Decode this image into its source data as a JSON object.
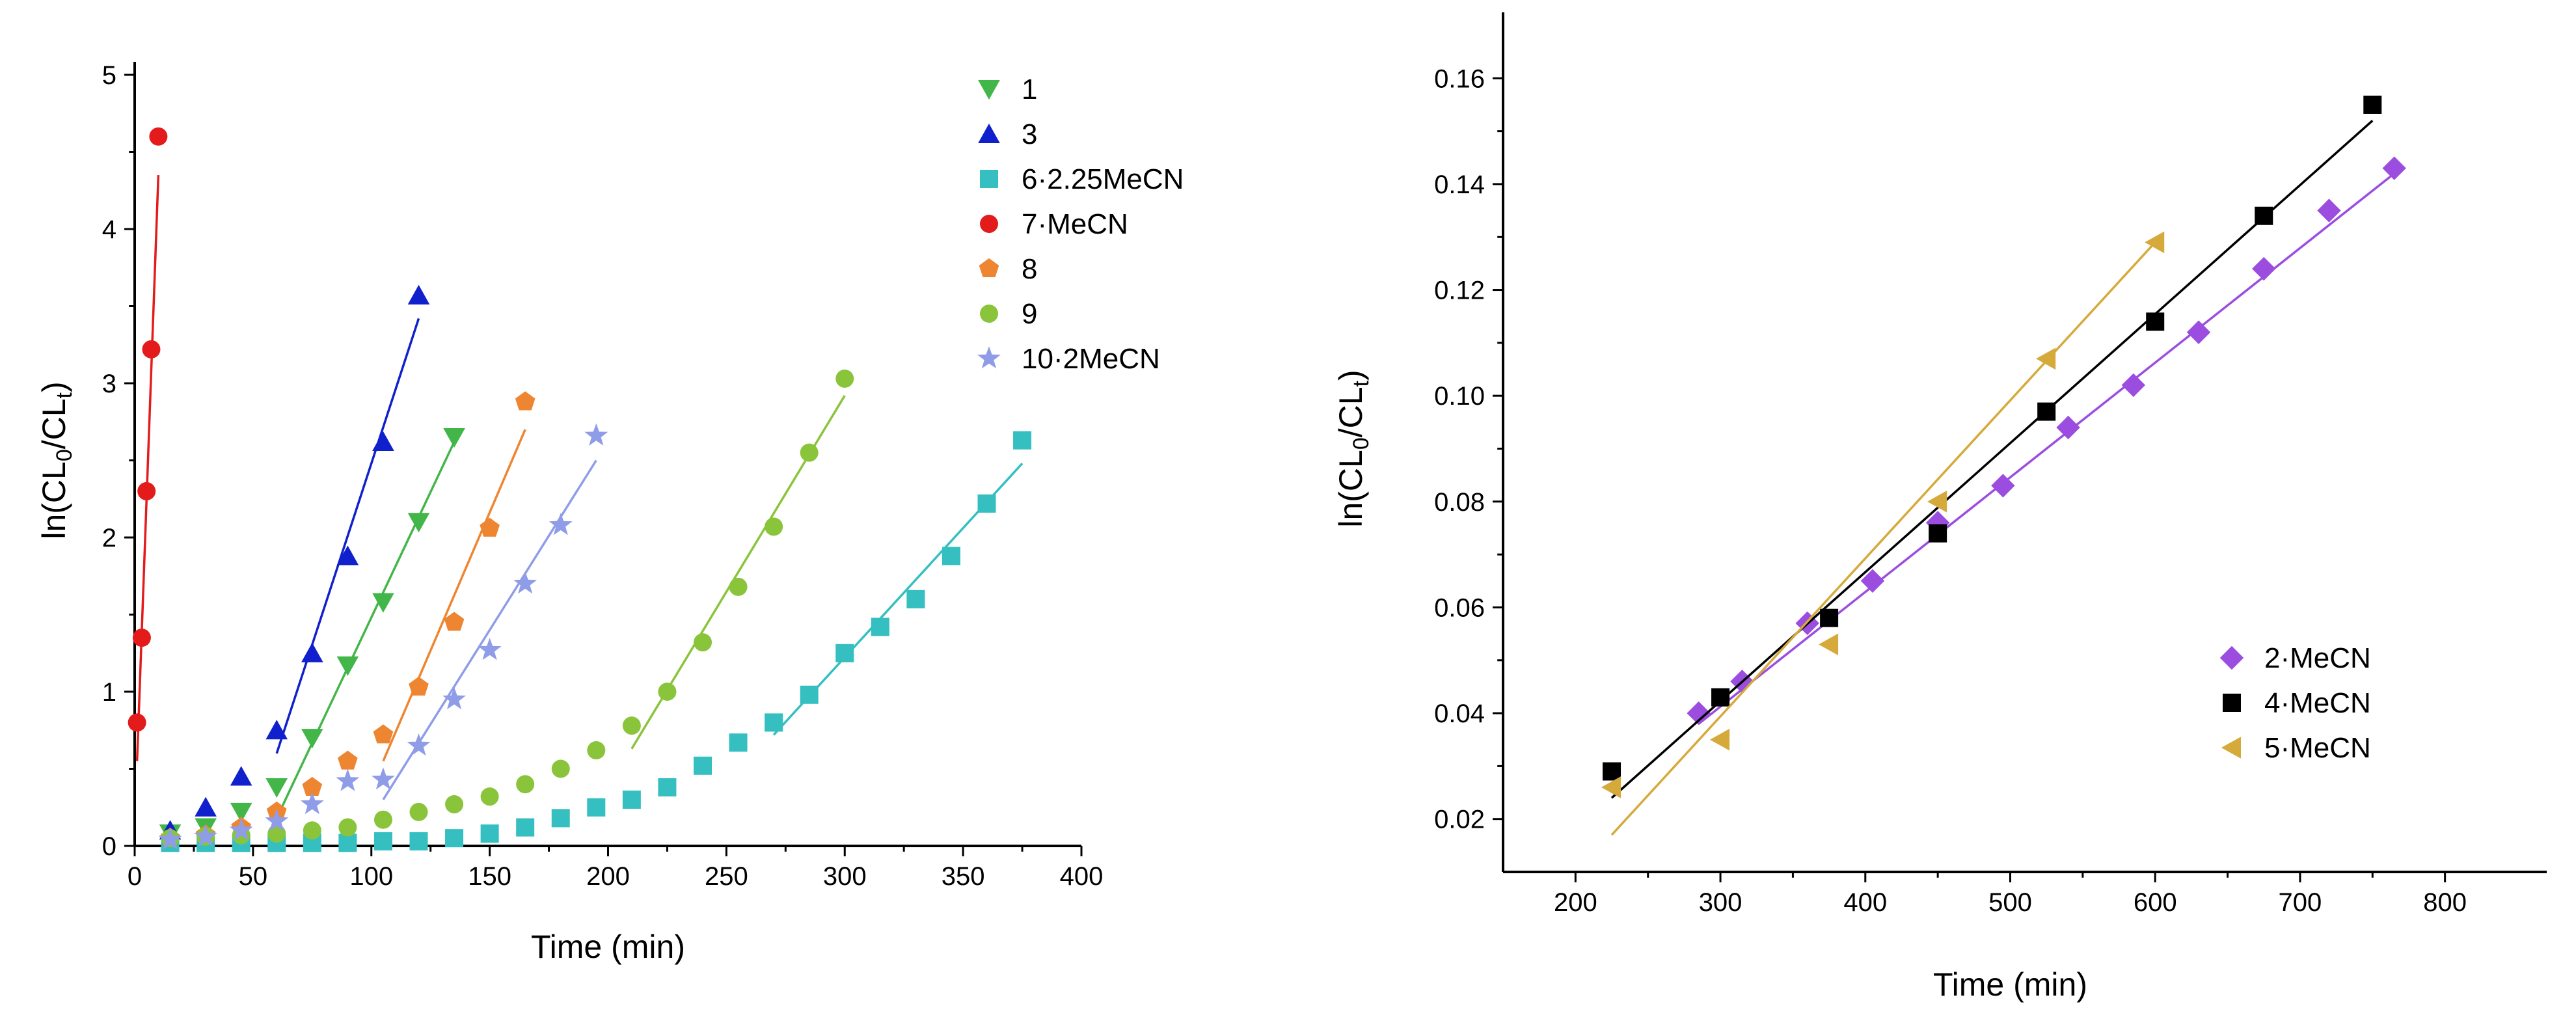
{
  "chart_data": [
    {
      "type": "scatter",
      "xlabel": "Time (min)",
      "ylabel_parts": [
        "ln(CL",
        "0",
        "/CL",
        "t",
        ")"
      ],
      "xlim": [
        0,
        400
      ],
      "ylim": [
        0,
        5
      ],
      "xticks": [
        "0",
        "50",
        "100",
        "150",
        "200",
        "250",
        "300",
        "350",
        "400"
      ],
      "yticks": [
        "0",
        "1",
        "2",
        "3",
        "4",
        "5"
      ],
      "legend_position": "top-right",
      "series": [
        {
          "name": "1",
          "marker": "triangle-down",
          "color": "#43b649",
          "points": [
            [
              15,
              0.08
            ],
            [
              30,
              0.12
            ],
            [
              45,
              0.22
            ],
            [
              60,
              0.38
            ],
            [
              75,
              0.7
            ],
            [
              90,
              1.17
            ],
            [
              105,
              1.58
            ],
            [
              120,
              2.1
            ],
            [
              135,
              2.65
            ]
          ],
          "fit": [
            [
              60,
              0.18
            ],
            [
              135,
              2.62
            ]
          ]
        },
        {
          "name": "3",
          "marker": "triangle-up",
          "color": "#1020cc",
          "points": [
            [
              15,
              0.1
            ],
            [
              30,
              0.25
            ],
            [
              45,
              0.45
            ],
            [
              60,
              0.75
            ],
            [
              75,
              1.25
            ],
            [
              90,
              1.88
            ],
            [
              105,
              2.62
            ],
            [
              120,
              3.57
            ]
          ],
          "fit": [
            [
              60,
              0.6
            ],
            [
              120,
              3.42
            ]
          ]
        },
        {
          "name": "6·2.25MeCN",
          "marker": "square",
          "color": "#35bfc1",
          "points": [
            [
              15,
              0.02
            ],
            [
              30,
              0.02
            ],
            [
              45,
              0.02
            ],
            [
              60,
              0.02
            ],
            [
              75,
              0.02
            ],
            [
              90,
              0.02
            ],
            [
              105,
              0.03
            ],
            [
              120,
              0.03
            ],
            [
              135,
              0.05
            ],
            [
              150,
              0.08
            ],
            [
              165,
              0.12
            ],
            [
              180,
              0.18
            ],
            [
              195,
              0.25
            ],
            [
              210,
              0.3
            ],
            [
              225,
              0.38
            ],
            [
              240,
              0.52
            ],
            [
              255,
              0.67
            ],
            [
              270,
              0.8
            ],
            [
              285,
              0.98
            ],
            [
              300,
              1.25
            ],
            [
              315,
              1.42
            ],
            [
              330,
              1.6
            ],
            [
              345,
              1.88
            ],
            [
              360,
              2.22
            ],
            [
              375,
              2.63
            ]
          ],
          "fit": [
            [
              270,
              0.72
            ],
            [
              375,
              2.48
            ]
          ]
        },
        {
          "name": "7·MeCN",
          "marker": "circle",
          "color": "#e31b1b",
          "points": [
            [
              1,
              0.8
            ],
            [
              3,
              1.35
            ],
            [
              5,
              2.3
            ],
            [
              7,
              3.22
            ],
            [
              10,
              4.6
            ]
          ],
          "fit": [
            [
              1,
              0.55
            ],
            [
              10,
              4.35
            ]
          ]
        },
        {
          "name": "8",
          "marker": "pentagon",
          "color": "#ee8530",
          "points": [
            [
              15,
              0.05
            ],
            [
              30,
              0.07
            ],
            [
              45,
              0.12
            ],
            [
              60,
              0.22
            ],
            [
              75,
              0.38
            ],
            [
              90,
              0.55
            ],
            [
              105,
              0.72
            ],
            [
              120,
              1.03
            ],
            [
              135,
              1.45
            ],
            [
              150,
              2.06
            ],
            [
              165,
              2.88
            ]
          ],
          "fit": [
            [
              105,
              0.55
            ],
            [
              165,
              2.7
            ]
          ]
        },
        {
          "name": "9",
          "marker": "circle",
          "color": "#8ac43a",
          "points": [
            [
              15,
              0.05
            ],
            [
              30,
              0.06
            ],
            [
              45,
              0.07
            ],
            [
              60,
              0.08
            ],
            [
              75,
              0.1
            ],
            [
              90,
              0.12
            ],
            [
              105,
              0.17
            ],
            [
              120,
              0.22
            ],
            [
              135,
              0.27
            ],
            [
              150,
              0.32
            ],
            [
              165,
              0.4
            ],
            [
              180,
              0.5
            ],
            [
              195,
              0.62
            ],
            [
              210,
              0.78
            ],
            [
              225,
              1.0
            ],
            [
              240,
              1.32
            ],
            [
              255,
              1.68
            ],
            [
              270,
              2.07
            ],
            [
              285,
              2.55
            ],
            [
              300,
              3.03
            ]
          ],
          "fit": [
            [
              210,
              0.63
            ],
            [
              300,
              2.92
            ]
          ]
        },
        {
          "name": "10·2MeCN",
          "marker": "star",
          "color": "#8f9de8",
          "points": [
            [
              15,
              0.04
            ],
            [
              30,
              0.06
            ],
            [
              45,
              0.1
            ],
            [
              60,
              0.16
            ],
            [
              75,
              0.27
            ],
            [
              90,
              0.42
            ],
            [
              105,
              0.43
            ],
            [
              120,
              0.65
            ],
            [
              135,
              0.95
            ],
            [
              150,
              1.27
            ],
            [
              165,
              1.7
            ],
            [
              180,
              2.08
            ],
            [
              195,
              2.66
            ]
          ],
          "fit": [
            [
              105,
              0.3
            ],
            [
              195,
              2.5
            ]
          ]
        }
      ]
    },
    {
      "type": "scatter",
      "xlabel": "Time (min)",
      "ylabel_parts": [
        "ln(CL",
        "0",
        "/CL",
        "t",
        ")"
      ],
      "xlim": [
        150,
        850
      ],
      "ylim": [
        0.01,
        0.17
      ],
      "xticks": [
        "200",
        "300",
        "400",
        "500",
        "600",
        "700",
        "800"
      ],
      "yticks": [
        "0.02",
        "0.04",
        "0.06",
        "0.08",
        "0.10",
        "0.12",
        "0.14",
        "0.16"
      ],
      "legend_position": "bottom-right",
      "series": [
        {
          "name": "2·MeCN",
          "marker": "diamond",
          "color": "#9b4de0",
          "points": [
            [
              285,
              0.04
            ],
            [
              315,
              0.046
            ],
            [
              360,
              0.057
            ],
            [
              405,
              0.065
            ],
            [
              450,
              0.076
            ],
            [
              495,
              0.083
            ],
            [
              540,
              0.094
            ],
            [
              585,
              0.102
            ],
            [
              630,
              0.112
            ],
            [
              675,
              0.124
            ],
            [
              720,
              0.135
            ],
            [
              765,
              0.143
            ]
          ],
          "fit": [
            [
              285,
              0.038
            ],
            [
              765,
              0.142
            ]
          ]
        },
        {
          "name": "4·MeCN",
          "marker": "square",
          "color": "#000000",
          "points": [
            [
              225,
              0.029
            ],
            [
              300,
              0.043
            ],
            [
              375,
              0.058
            ],
            [
              450,
              0.074
            ],
            [
              525,
              0.097
            ],
            [
              600,
              0.114
            ],
            [
              675,
              0.134
            ],
            [
              750,
              0.155
            ]
          ],
          "fit": [
            [
              225,
              0.024
            ],
            [
              750,
              0.152
            ]
          ]
        },
        {
          "name": "5·MeCN",
          "marker": "triangle-left",
          "color": "#d6a93b",
          "points": [
            [
              225,
              0.026
            ],
            [
              300,
              0.035
            ],
            [
              375,
              0.053
            ],
            [
              450,
              0.08
            ],
            [
              525,
              0.107
            ],
            [
              600,
              0.129
            ]
          ],
          "fit": [
            [
              225,
              0.017
            ],
            [
              600,
              0.129
            ]
          ]
        }
      ]
    }
  ]
}
